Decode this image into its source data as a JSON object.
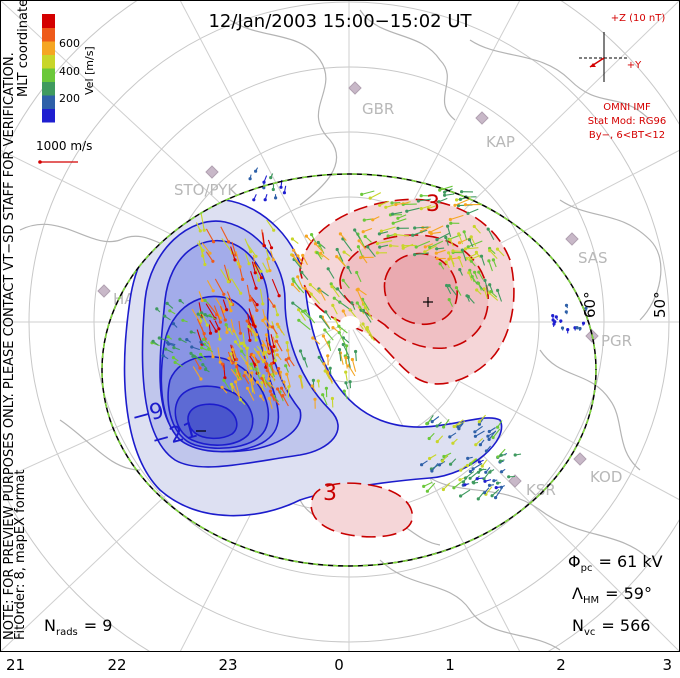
{
  "header": {
    "title": "12/Jan/2003 15:00−15:02 UT"
  },
  "imf": {
    "label_z": "+Z (10 nT)",
    "label_y": "+Y",
    "omni": "OMNI IMF",
    "model": "Stat Mod: RG96",
    "condition": "By−, 6<BT<12",
    "color": "#d40000"
  },
  "legend": {
    "axis_label": "Vel [m/s]",
    "ticks": [
      "600",
      "400",
      "200"
    ],
    "coords": "MLT coordinates",
    "ref_vector": "1000 m/s",
    "colors": [
      "#1f1fd0",
      "#2e60a8",
      "#3f9a5f",
      "#6bc83a",
      "#c8d62a",
      "#f5a623",
      "#ee5a1a",
      "#d40000"
    ]
  },
  "side_note": {
    "line1": "NOTE: FOR PREVIEW PURPOSES ONLY. PLEASE CONTACT VT−SD STAFF FOR VERIFICATION.",
    "line2": "FitOrder: 8, mapEX format"
  },
  "stations": [
    {
      "code": "GBR"
    },
    {
      "code": "KAP"
    },
    {
      "code": "STO/PYK"
    },
    {
      "code": "SAS"
    },
    {
      "code": "HAN"
    },
    {
      "code": "PGR"
    },
    {
      "code": "KOD"
    },
    {
      "code": "KSR"
    }
  ],
  "lat_labels": [
    "60°",
    "50°"
  ],
  "contour_labels": [
    "3",
    "3",
    "−9",
    "−21"
  ],
  "stats": {
    "phi_sym": "Φ",
    "phi_sub": "pc",
    "phi_val": "= 61 kV",
    "lam_sym": "Λ",
    "lam_sub": "HM",
    "lam_val": "= 59°",
    "nvc_sym": "N",
    "nvc_sub": "vc",
    "nvc_val": "= 566",
    "nrads_sym": "N",
    "nrads_sub": "rads",
    "nrads_val": "= 9"
  },
  "chart_data": {
    "type": "polar convection map",
    "mlt_axis_ticks": [
      "21",
      "22",
      "23",
      "0",
      "1",
      "2",
      "3"
    ],
    "potential_min_kv": -21,
    "potential_max_kv": 3,
    "cross_polar_cap_potential_kv": 61,
    "heppner_maynard_boundary_deg": 59,
    "vector_count": 566,
    "radar_count": 9,
    "velocity_scale_ms": [
      0,
      200,
      400,
      600,
      800
    ]
  }
}
